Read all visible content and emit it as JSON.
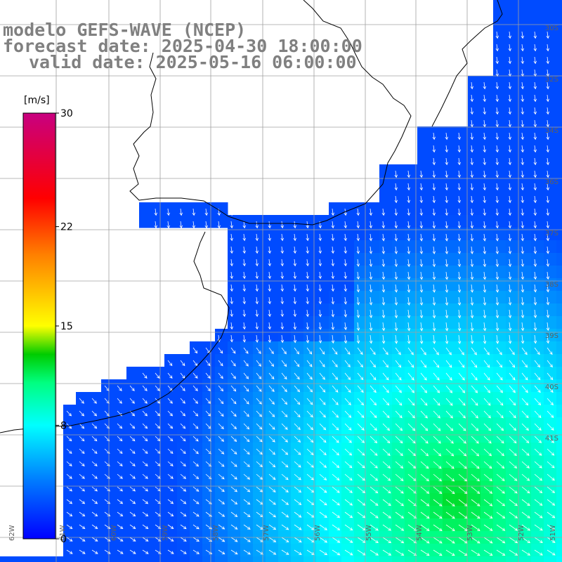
{
  "titles": {
    "line1": "modelo GEFS-WAVE (NCEP)",
    "line2": "forecast date: 2025-04-30 18:00:00",
    "line3": "valid date: 2025-05-16 06:00:00"
  },
  "colorbar": {
    "unit": "[m/s]",
    "ticks": [
      {
        "value": 30,
        "label": "30"
      },
      {
        "value": 22,
        "label": "22"
      },
      {
        "value": 15,
        "label": "15"
      },
      {
        "value": 8,
        "label": "8"
      },
      {
        "value": 0,
        "label": "0"
      }
    ],
    "range": [
      0,
      30
    ],
    "gradient": [
      {
        "value": 0,
        "color": "#0000ff"
      },
      {
        "value": 4,
        "color": "#0078ff"
      },
      {
        "value": 8,
        "color": "#00ffff"
      },
      {
        "value": 11,
        "color": "#00ff80"
      },
      {
        "value": 13,
        "color": "#00cc00"
      },
      {
        "value": 15,
        "color": "#ffff00"
      },
      {
        "value": 20,
        "color": "#ff8000"
      },
      {
        "value": 24,
        "color": "#ff0000"
      },
      {
        "value": 30,
        "color": "#c80080"
      }
    ]
  },
  "map": {
    "lat_labels": [
      "30S",
      "32S",
      "34S",
      "36S",
      "37S",
      "38S",
      "39S",
      "40S",
      "41S"
    ],
    "lon_labels": [
      "62W",
      "61W",
      "60W",
      "59W",
      "58W",
      "57W",
      "56W",
      "55W",
      "54W",
      "53W",
      "52W",
      "51W"
    ],
    "colors": {
      "land": "#ffffff",
      "grid": "#a0a0a0",
      "coast": "#000000",
      "vector": "#ffffff",
      "title": "#808080"
    }
  }
}
